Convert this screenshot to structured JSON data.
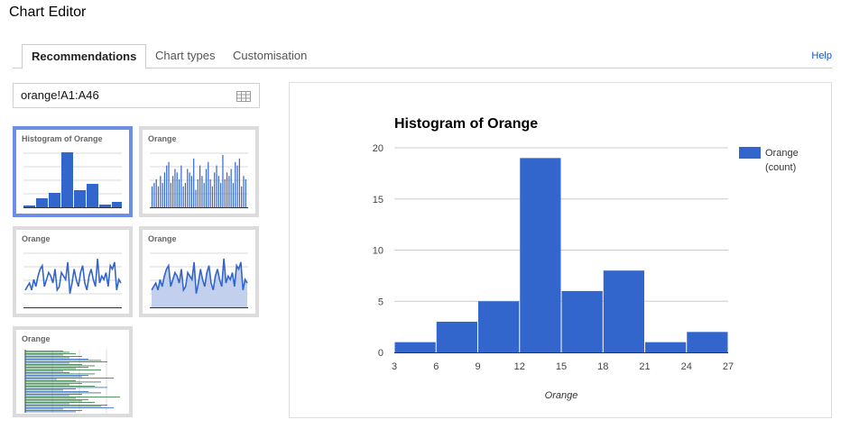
{
  "window": {
    "title": "Chart Editor"
  },
  "tabs": [
    {
      "label": "Recommendations",
      "active": true
    },
    {
      "label": "Chart types",
      "active": false
    },
    {
      "label": "Customisation",
      "active": false
    }
  ],
  "help_label": "Help",
  "range_input": {
    "value": "orange!A1:A46"
  },
  "thumbnails": [
    {
      "label": "Histogram of Orange",
      "kind": "histogram",
      "selected": true
    },
    {
      "label": "Orange",
      "kind": "column",
      "selected": false
    },
    {
      "label": "Orange",
      "kind": "line",
      "selected": false
    },
    {
      "label": "Orange",
      "kind": "area",
      "selected": false
    },
    {
      "label": "Orange",
      "kind": "bar",
      "selected": false
    }
  ],
  "chart_data": {
    "type": "bar",
    "title": "Histogram of Orange",
    "xlabel": "Orange",
    "ylabel": "",
    "bins": [
      [
        3,
        6
      ],
      [
        6,
        9
      ],
      [
        9,
        12
      ],
      [
        12,
        15
      ],
      [
        15,
        18
      ],
      [
        18,
        21
      ],
      [
        21,
        24
      ],
      [
        24,
        27
      ]
    ],
    "values": [
      1,
      3,
      5,
      19,
      6,
      8,
      1,
      2
    ],
    "xticks": [
      "3",
      "6",
      "9",
      "12",
      "15",
      "18",
      "21",
      "24",
      "27"
    ],
    "yticks": [
      "0",
      "5",
      "10",
      "15",
      "20"
    ],
    "xlim": [
      3,
      27
    ],
    "ylim": [
      0,
      20
    ],
    "grid": true,
    "legend": {
      "position": "right",
      "label": "Orange",
      "sublabel": "(count)"
    },
    "color": "#3366cc"
  }
}
